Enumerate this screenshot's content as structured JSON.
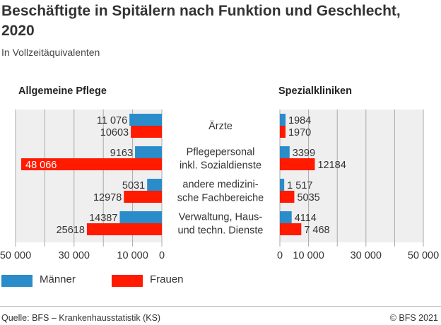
{
  "title": "Beschäftigte in Spitälern nach Funktion und Geschlecht, 2020",
  "subtitle": "In Vollzeitäquivalenten",
  "source": "Quelle: BFS – Krankenhausstatistik (KS)",
  "copyright": "© BFS 2021",
  "colors": {
    "maenner": "#2b8cca",
    "frauen": "#ff1a00",
    "background": "#efefef",
    "grid": "#aaaaaa"
  },
  "chart_data": [
    {
      "type": "bar",
      "orientation": "horizontal-reversed",
      "title": "Allgemeine Pflege",
      "categories": [
        "Ärzte",
        "Pflegepersonal inkl. Sozialdienste",
        "andere medizinische Fachbereiche",
        "Verwaltung, Haus- und techn. Dienste"
      ],
      "category_label_lines": [
        [
          "Ärzte"
        ],
        [
          "Pflegepersonal",
          "inkl. Sozialdienste"
        ],
        [
          "andere medizini-",
          "sche Fachbereiche"
        ],
        [
          "Verwaltung, Haus-",
          "und techn. Dienste"
        ]
      ],
      "series": [
        {
          "name": "Männer",
          "values": [
            11076,
            9163,
            5031,
            14387
          ],
          "labels": [
            "11 076",
            "9163",
            "5031",
            "14387"
          ]
        },
        {
          "name": "Frauen",
          "values": [
            10603,
            48066,
            12978,
            25618
          ],
          "labels": [
            "10603",
            "48 066",
            "12978",
            "25618"
          ]
        }
      ],
      "xlim": [
        0,
        50000
      ],
      "xticks": [
        50000,
        30000,
        10000,
        0
      ],
      "xtick_labels": [
        "50 000",
        "30 000",
        "10 000",
        "0"
      ],
      "grid": true
    },
    {
      "type": "bar",
      "orientation": "horizontal",
      "title": "Spezialkliniken",
      "categories": [
        "Ärzte",
        "Pflegepersonal inkl. Sozialdienste",
        "andere medizinische Fachbereiche",
        "Verwaltung, Haus- und techn. Dienste"
      ],
      "series": [
        {
          "name": "Männer",
          "values": [
            1984,
            3399,
            1517,
            4114
          ],
          "labels": [
            "1984",
            "3399",
            "1 517",
            "4114"
          ]
        },
        {
          "name": "Frauen",
          "values": [
            1970,
            12184,
            5035,
            7468
          ],
          "labels": [
            "1970",
            "12184",
            "5035",
            "7 468"
          ]
        }
      ],
      "xlim": [
        0,
        50000
      ],
      "xticks": [
        0,
        10000,
        30000,
        50000
      ],
      "xtick_labels": [
        "0",
        "10 000",
        "30 000",
        "50 000"
      ],
      "grid": true
    }
  ],
  "legend": [
    {
      "name": "Männer"
    },
    {
      "name": "Frauen"
    }
  ]
}
